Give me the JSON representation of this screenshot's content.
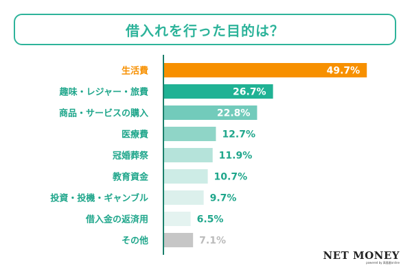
{
  "chart_data": {
    "type": "bar",
    "orientation": "horizontal",
    "title": "借入れを行った目的は？",
    "categories": [
      "生活費",
      "趣味・レジャー・旅費",
      "商品・サービスの購入",
      "医療費",
      "冠婚葬祭",
      "教育資金",
      "投資・投機・ギャンブル",
      "借入金の返済用",
      "その他"
    ],
    "values": [
      49.7,
      26.7,
      22.8,
      12.7,
      11.9,
      10.7,
      9.7,
      6.5,
      7.1
    ],
    "value_labels": [
      "49.7%",
      "26.7%",
      "22.8%",
      "12.7%",
      "11.9%",
      "10.7%",
      "9.7%",
      "6.5%",
      "7.1%"
    ],
    "xlim": [
      0,
      50
    ],
    "unit": "%",
    "bar_colors": [
      "#f79000",
      "#20b294",
      "#72cbbb",
      "#8fd5c7",
      "#b5e3da",
      "#cdece6",
      "#dcf0ec",
      "#e4f3f0",
      "#c6c6c6"
    ],
    "category_colors": [
      "#f79000",
      "#1fa68b",
      "#1fa68b",
      "#1fa68b",
      "#1fa68b",
      "#1fa68b",
      "#1fa68b",
      "#1fa68b",
      "#1fa68b"
    ],
    "label_inside": [
      true,
      true,
      true,
      false,
      false,
      false,
      false,
      false,
      false
    ],
    "grid": false
  },
  "brand": {
    "name": "NET MONEY",
    "subtitle": "powered by 高島屋online"
  }
}
